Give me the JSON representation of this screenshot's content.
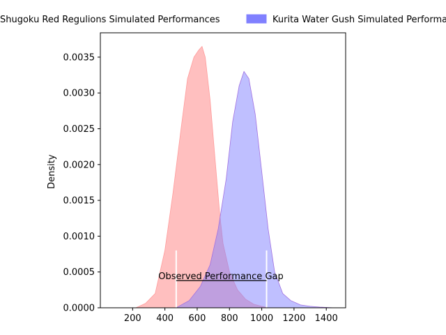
{
  "chart_data": {
    "type": "area",
    "xlabel": "",
    "ylabel": "Density",
    "xlim": [
      0,
      1520
    ],
    "ylim": [
      0,
      0.00384
    ],
    "xticks": [
      200,
      400,
      600,
      800,
      1000,
      1200,
      1400
    ],
    "yticks": [
      0.0,
      0.0005,
      0.001,
      0.0015,
      0.002,
      0.0025,
      0.003,
      0.0035
    ],
    "ytick_labels": [
      "0.0000",
      "0.0005",
      "0.0010",
      "0.0015",
      "0.0020",
      "0.0025",
      "0.0030",
      "0.0035"
    ],
    "legend_placement": "top, outside the axes",
    "series": [
      {
        "name": "Shugoku Red Regulions Simulated Performances",
        "color": "#ff8080",
        "x": [
          220,
          280,
          340,
          400,
          450,
          500,
          540,
          580,
          610,
          630,
          650,
          680,
          710,
          740,
          760,
          800,
          850,
          900,
          950,
          1000,
          1040
        ],
        "y": [
          0.0,
          6e-05,
          0.0002,
          0.0008,
          0.0016,
          0.0025,
          0.0032,
          0.0035,
          0.0036,
          0.00365,
          0.0035,
          0.0029,
          0.0021,
          0.0013,
          0.0009,
          0.0005,
          0.00025,
          0.00012,
          5e-05,
          2e-05,
          0.0
        ]
      },
      {
        "name": "Kurita Water Gush Simulated Performances",
        "color": "#8080ff",
        "x": [
          470,
          550,
          620,
          680,
          730,
          780,
          820,
          860,
          890,
          920,
          960,
          1000,
          1040,
          1080,
          1130,
          1180,
          1240,
          1300,
          1360,
          1450
        ],
        "y": [
          0.0,
          0.0001,
          0.0003,
          0.0006,
          0.0011,
          0.0018,
          0.0026,
          0.0031,
          0.0033,
          0.0032,
          0.0027,
          0.0019,
          0.0011,
          0.0005,
          0.0002,
          0.0001,
          4e-05,
          2e-05,
          1e-05,
          0.0
        ]
      }
    ],
    "markers": [
      {
        "x": 470,
        "y_top": 0.0008
      },
      {
        "x": 1030,
        "y_top": 0.0008
      }
    ],
    "annotation": {
      "text": "Observed Performance Gap",
      "x_start": 470,
      "x_end": 1030,
      "y": 0.00038
    }
  }
}
